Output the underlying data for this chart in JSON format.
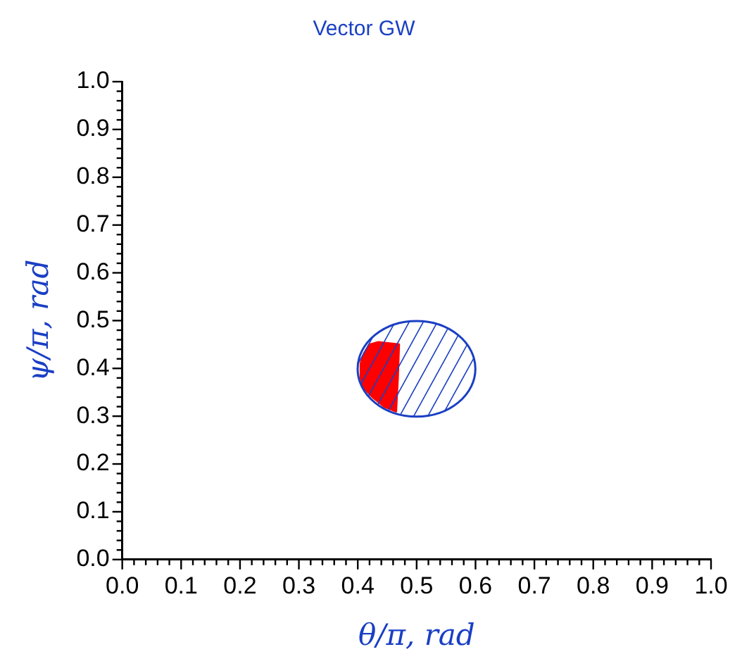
{
  "chart_data": {
    "type": "line",
    "title": "Vector GW",
    "xlabel": "θ/π, rad",
    "ylabel": "ψ/π, rad",
    "xlim": [
      0,
      1
    ],
    "ylim": [
      0,
      1
    ],
    "xticks": [
      {
        "value": 0,
        "label": "0.0"
      },
      {
        "value": 0.02,
        "label": null
      },
      {
        "value": 0.04,
        "label": null
      },
      {
        "value": 0.06,
        "label": null
      },
      {
        "value": 0.08,
        "label": null
      },
      {
        "value": 0.1,
        "label": "0.1"
      },
      {
        "value": 0.12,
        "label": null
      },
      {
        "value": 0.14,
        "label": null
      },
      {
        "value": 0.16,
        "label": null
      },
      {
        "value": 0.18,
        "label": null
      },
      {
        "value": 0.2,
        "label": "0.2"
      },
      {
        "value": 0.22,
        "label": null
      },
      {
        "value": 0.24,
        "label": null
      },
      {
        "value": 0.26,
        "label": null
      },
      {
        "value": 0.28,
        "label": null
      },
      {
        "value": 0.3,
        "label": "0.3"
      },
      {
        "value": 0.32,
        "label": null
      },
      {
        "value": 0.34,
        "label": null
      },
      {
        "value": 0.36,
        "label": null
      },
      {
        "value": 0.38,
        "label": null
      },
      {
        "value": 0.4,
        "label": "0.4"
      },
      {
        "value": 0.42,
        "label": null
      },
      {
        "value": 0.44,
        "label": null
      },
      {
        "value": 0.46,
        "label": null
      },
      {
        "value": 0.48,
        "label": null
      },
      {
        "value": 0.5,
        "label": "0.5"
      },
      {
        "value": 0.52,
        "label": null
      },
      {
        "value": 0.54,
        "label": null
      },
      {
        "value": 0.56,
        "label": null
      },
      {
        "value": 0.58,
        "label": null
      },
      {
        "value": 0.6,
        "label": "0.6"
      },
      {
        "value": 0.62,
        "label": null
      },
      {
        "value": 0.64,
        "label": null
      },
      {
        "value": 0.66,
        "label": null
      },
      {
        "value": 0.68,
        "label": null
      },
      {
        "value": 0.7,
        "label": "0.7"
      },
      {
        "value": 0.72,
        "label": null
      },
      {
        "value": 0.74,
        "label": null
      },
      {
        "value": 0.76,
        "label": null
      },
      {
        "value": 0.78,
        "label": null
      },
      {
        "value": 0.8,
        "label": "0.8"
      },
      {
        "value": 0.82,
        "label": null
      },
      {
        "value": 0.84,
        "label": null
      },
      {
        "value": 0.86,
        "label": null
      },
      {
        "value": 0.88,
        "label": null
      },
      {
        "value": 0.9,
        "label": "0.9"
      },
      {
        "value": 0.92,
        "label": null
      },
      {
        "value": 0.94,
        "label": null
      },
      {
        "value": 0.96,
        "label": null
      },
      {
        "value": 0.98,
        "label": null
      },
      {
        "value": 1,
        "label": "1.0"
      }
    ],
    "yticks": [
      {
        "value": 0,
        "label": "0.0"
      },
      {
        "value": 0.02,
        "label": null
      },
      {
        "value": 0.04,
        "label": null
      },
      {
        "value": 0.06,
        "label": null
      },
      {
        "value": 0.08,
        "label": null
      },
      {
        "value": 0.1,
        "label": "0.1"
      },
      {
        "value": 0.12,
        "label": null
      },
      {
        "value": 0.14,
        "label": null
      },
      {
        "value": 0.16,
        "label": null
      },
      {
        "value": 0.18,
        "label": null
      },
      {
        "value": 0.2,
        "label": "0.2"
      },
      {
        "value": 0.22,
        "label": null
      },
      {
        "value": 0.24,
        "label": null
      },
      {
        "value": 0.26,
        "label": null
      },
      {
        "value": 0.28,
        "label": null
      },
      {
        "value": 0.3,
        "label": "0.3"
      },
      {
        "value": 0.32,
        "label": null
      },
      {
        "value": 0.34,
        "label": null
      },
      {
        "value": 0.36,
        "label": null
      },
      {
        "value": 0.38,
        "label": null
      },
      {
        "value": 0.4,
        "label": "0.4"
      },
      {
        "value": 0.42,
        "label": null
      },
      {
        "value": 0.44,
        "label": null
      },
      {
        "value": 0.46,
        "label": null
      },
      {
        "value": 0.48,
        "label": null
      },
      {
        "value": 0.5,
        "label": "0.5"
      },
      {
        "value": 0.52,
        "label": null
      },
      {
        "value": 0.54,
        "label": null
      },
      {
        "value": 0.56,
        "label": null
      },
      {
        "value": 0.58,
        "label": null
      },
      {
        "value": 0.6,
        "label": "0.6"
      },
      {
        "value": 0.62,
        "label": null
      },
      {
        "value": 0.64,
        "label": null
      },
      {
        "value": 0.66,
        "label": null
      },
      {
        "value": 0.68,
        "label": null
      },
      {
        "value": 0.7,
        "label": "0.7"
      },
      {
        "value": 0.72,
        "label": null
      },
      {
        "value": 0.74,
        "label": null
      },
      {
        "value": 0.76,
        "label": null
      },
      {
        "value": 0.78,
        "label": null
      },
      {
        "value": 0.8,
        "label": "0.8"
      },
      {
        "value": 0.82,
        "label": null
      },
      {
        "value": 0.84,
        "label": null
      },
      {
        "value": 0.86,
        "label": null
      },
      {
        "value": 0.88,
        "label": null
      },
      {
        "value": 0.9,
        "label": "0.9"
      },
      {
        "value": 0.92,
        "label": null
      },
      {
        "value": 0.94,
        "label": null
      },
      {
        "value": 0.96,
        "label": null
      },
      {
        "value": 0.98,
        "label": null
      },
      {
        "value": 1,
        "label": "1.0"
      }
    ],
    "grid": false,
    "legend": false,
    "marker": "none",
    "line_style": "solid",
    "series": [
      {
        "type": "area",
        "color": "#ff0000",
        "x": [
          0.41,
          0.42,
          0.435,
          0.47,
          0.468,
          0.465,
          0.445,
          0.425,
          0.41,
          0.405,
          0.405,
          0.41
        ],
        "values": [
          0.43,
          0.45,
          0.455,
          0.45,
          0.38,
          0.31,
          0.32,
          0.34,
          0.36,
          0.38,
          0.41,
          0.43
        ]
      }
    ]
  }
}
